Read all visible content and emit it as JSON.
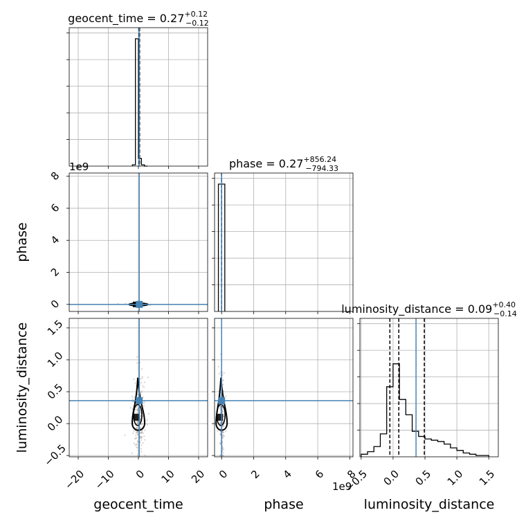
{
  "chart_data": {
    "type": "corner",
    "parameters": [
      {
        "key": "geocent_time",
        "label": "geocent_time",
        "truth": 0.27,
        "title": {
          "prefix": "geocent_time = ",
          "median": "0.27",
          "plus": "+0.12",
          "minus": "−0.12"
        },
        "range": [
          -23,
          23
        ],
        "ticks": [
          -20,
          -10,
          0,
          10,
          20
        ],
        "tick_labels": [
          "−20",
          "−10",
          "0",
          "10",
          "20"
        ],
        "quantiles": [
          0.15,
          0.27,
          0.39
        ]
      },
      {
        "key": "phase",
        "label": "phase",
        "truth": 0.27,
        "title": {
          "prefix": "phase = ",
          "median": "0.27",
          "plus": "+856.24",
          "minus": "−794.33"
        },
        "range": [
          -440000000.0,
          8200000000.0
        ],
        "ticks": [
          0,
          2000000000.0,
          4000000000.0,
          6000000000.0,
          8000000000.0
        ],
        "tick_labels": [
          "0",
          "2",
          "4",
          "6",
          "8"
        ],
        "offset_text": "1e9",
        "quantiles": [
          -794.06,
          0.27,
          856.51
        ]
      },
      {
        "key": "luminosity_distance",
        "label": "luminosity_distance",
        "truth": 0.36,
        "title": {
          "prefix": "luminosity_distance = ",
          "median": "0.09",
          "plus": "+0.40",
          "minus": "−0.14"
        },
        "range": [
          -0.52,
          1.65
        ],
        "ticks": [
          -0.5,
          0.0,
          0.5,
          1.0,
          1.5
        ],
        "tick_labels": [
          "−0.5",
          "0.0",
          "0.5",
          "1.0",
          "1.5"
        ],
        "quantiles": [
          -0.05,
          0.09,
          0.49
        ]
      }
    ],
    "hist_1d": {
      "geocent_time": {
        "bin_edges": [
          -2,
          -1,
          0,
          1,
          2,
          3
        ],
        "counts": [
          0.01,
          1.0,
          0.06,
          0.01,
          0.0
        ]
      },
      "phase": {
        "bin_edges": [
          -200000000.0,
          200000000.0
        ],
        "counts": [
          1.0
        ]
      },
      "luminosity_distance": {
        "bin_edges": [
          -0.5,
          -0.4,
          -0.3,
          -0.2,
          -0.1,
          0.0,
          0.1,
          0.2,
          0.3,
          0.4,
          0.5,
          0.6,
          0.7,
          0.8,
          0.9,
          1.0,
          1.1,
          1.2,
          1.3,
          1.4,
          1.5
        ],
        "counts": [
          0.02,
          0.04,
          0.08,
          0.18,
          0.55,
          0.73,
          0.45,
          0.33,
          0.2,
          0.16,
          0.14,
          0.13,
          0.12,
          0.1,
          0.07,
          0.05,
          0.03,
          0.02,
          0.01,
          0.01
        ]
      }
    },
    "offset_label_left": "1e9",
    "grid": true,
    "truth_color": "#4682b4",
    "line_color": "#000000",
    "scatter_color": "#9e9e9e"
  }
}
